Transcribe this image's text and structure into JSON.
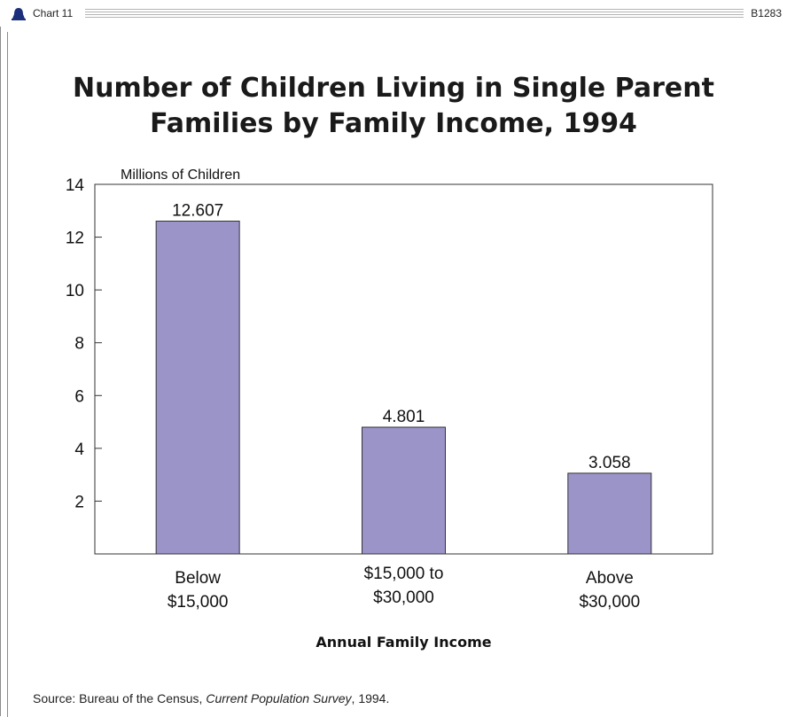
{
  "header": {
    "chart_label": "Chart 11",
    "code": "B1283",
    "icon": "bell-icon"
  },
  "colors": {
    "bar_fill": "#9b94c8",
    "bar_stroke": "#333333",
    "icon": "#1b2f7a"
  },
  "chart_data": {
    "type": "bar",
    "title_lines": [
      "Number of Children Living in Single Parent",
      "Families by Family Income, 1994"
    ],
    "ylabel": "Millions of Children",
    "xlabel": "Annual Family Income",
    "ylim": [
      0,
      14
    ],
    "yticks": [
      2,
      4,
      6,
      8,
      10,
      12,
      14
    ],
    "categories": [
      [
        "Below",
        "$15,000"
      ],
      [
        "$15,000 to",
        "$30,000"
      ],
      [
        "Above",
        "$30,000"
      ]
    ],
    "values": [
      12.607,
      4.801,
      3.058
    ],
    "value_labels": [
      "12.607",
      "4.801",
      "3.058"
    ],
    "grid": false,
    "legend": "none"
  },
  "source": {
    "prefix": "Source:",
    "text_before": " Bureau of the Census, ",
    "publication": "Current Population Survey",
    "text_after": ", 1994."
  }
}
